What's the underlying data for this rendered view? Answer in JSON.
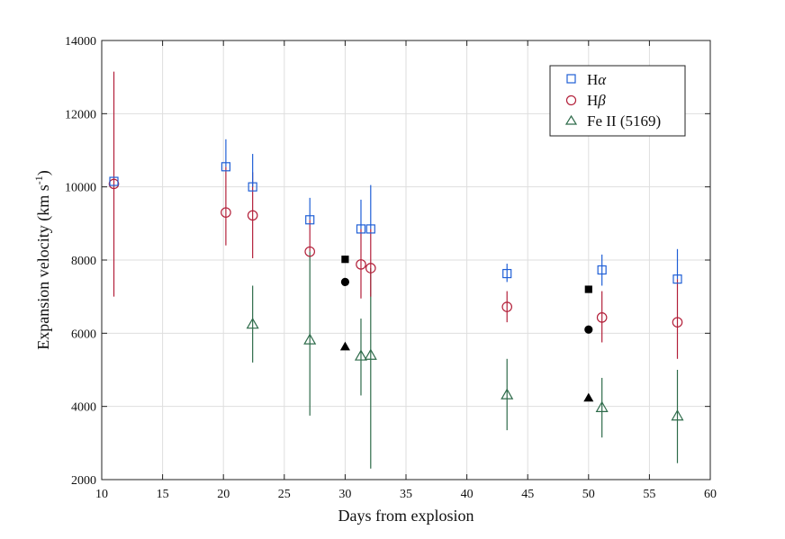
{
  "chart_data": {
    "type": "scatter",
    "title": "",
    "xlabel": "Days from explosion",
    "ylabel": "Expansion velocity (km s",
    "ylabel_sup": "-1",
    "ylabel_close": ")",
    "xlim": [
      10,
      60
    ],
    "ylim": [
      2000,
      14000
    ],
    "xticks": [
      10,
      15,
      20,
      25,
      30,
      35,
      40,
      45,
      50,
      55,
      60
    ],
    "yticks": [
      2000,
      4000,
      6000,
      8000,
      10000,
      12000,
      14000
    ],
    "grid": true,
    "legend_position": "top-right",
    "series": [
      {
        "name": "Hα",
        "label_main": "H",
        "label_greek": "α",
        "marker": "square",
        "color": "#1f5fd6",
        "points": [
          {
            "x": 11.0,
            "y": 10150,
            "err_low": 10150,
            "err_high": 10150
          },
          {
            "x": 20.2,
            "y": 10550,
            "err_low": 10550,
            "err_high": 11300
          },
          {
            "x": 22.4,
            "y": 10000,
            "err_low": 10000,
            "err_high": 10900
          },
          {
            "x": 27.1,
            "y": 9100,
            "err_low": 9100,
            "err_high": 9700
          },
          {
            "x": 31.3,
            "y": 8850,
            "err_low": 8850,
            "err_high": 9650
          },
          {
            "x": 32.1,
            "y": 8850,
            "err_low": 8850,
            "err_high": 10050
          },
          {
            "x": 43.3,
            "y": 7630,
            "err_low": 7400,
            "err_high": 7900
          },
          {
            "x": 51.1,
            "y": 7730,
            "err_low": 7300,
            "err_high": 8150
          },
          {
            "x": 57.3,
            "y": 7480,
            "err_low": 7480,
            "err_high": 8300
          }
        ]
      },
      {
        "name": "Hβ",
        "label_main": "H",
        "label_greek": "β",
        "marker": "circle",
        "color": "#b3203a",
        "points": [
          {
            "x": 11.0,
            "y": 10080,
            "err_low": 7000,
            "err_high": 13150
          },
          {
            "x": 20.2,
            "y": 9300,
            "err_low": 8400,
            "err_high": 10550
          },
          {
            "x": 22.4,
            "y": 9220,
            "err_low": 8050,
            "err_high": 10400
          },
          {
            "x": 27.1,
            "y": 8230,
            "err_low": 8230,
            "err_high": 9100
          },
          {
            "x": 31.3,
            "y": 7880,
            "err_low": 6950,
            "err_high": 8850
          },
          {
            "x": 32.1,
            "y": 7780,
            "err_low": 7000,
            "err_high": 8850
          },
          {
            "x": 43.3,
            "y": 6720,
            "err_low": 6300,
            "err_high": 7150
          },
          {
            "x": 51.1,
            "y": 6430,
            "err_low": 5750,
            "err_high": 7150
          },
          {
            "x": 57.3,
            "y": 6300,
            "err_low": 5300,
            "err_high": 7480
          }
        ]
      },
      {
        "name": "Fe II (5169)",
        "marker": "triangle",
        "color": "#2e6b4a",
        "points": [
          {
            "x": 22.4,
            "y": 6250,
            "err_low": 5200,
            "err_high": 7300
          },
          {
            "x": 27.1,
            "y": 5820,
            "err_low": 3750,
            "err_high": 8230
          },
          {
            "x": 31.3,
            "y": 5380,
            "err_low": 4300,
            "err_high": 6400
          },
          {
            "x": 32.1,
            "y": 5400,
            "err_low": 2300,
            "err_high": 7780
          },
          {
            "x": 43.3,
            "y": 4320,
            "err_low": 3350,
            "err_high": 5300
          },
          {
            "x": 51.1,
            "y": 3970,
            "err_low": 3150,
            "err_high": 4780
          },
          {
            "x": 57.3,
            "y": 3740,
            "err_low": 2450,
            "err_high": 5000
          }
        ]
      }
    ],
    "reference_points": {
      "color": "#000000",
      "points": [
        {
          "x": 30.0,
          "y": 8020,
          "marker": "square"
        },
        {
          "x": 30.0,
          "y": 7400,
          "marker": "circle"
        },
        {
          "x": 30.0,
          "y": 5630,
          "marker": "triangle"
        },
        {
          "x": 50.0,
          "y": 7200,
          "marker": "square"
        },
        {
          "x": 50.0,
          "y": 6100,
          "marker": "circle"
        },
        {
          "x": 50.0,
          "y": 4230,
          "marker": "triangle"
        }
      ]
    }
  }
}
